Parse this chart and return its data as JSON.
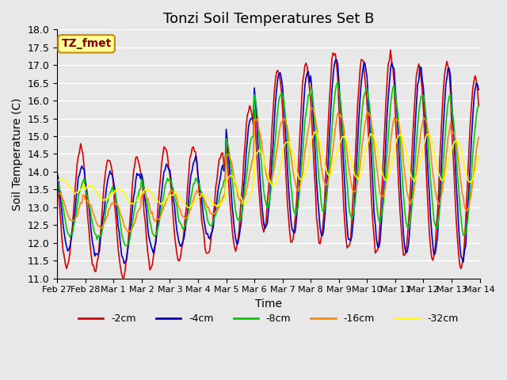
{
  "title": "Tonzi Soil Temperatures Set B",
  "xlabel": "Time",
  "ylabel": "Soil Temperature (C)",
  "ylim": [
    11.0,
    18.0
  ],
  "yticks": [
    11.0,
    11.5,
    12.0,
    12.5,
    13.0,
    13.5,
    14.0,
    14.5,
    15.0,
    15.5,
    16.0,
    16.5,
    17.0,
    17.5,
    18.0
  ],
  "xtick_labels": [
    "Feb 27",
    "Feb 28",
    "Mar 1",
    "Mar 2",
    "Mar 3",
    "Mar 4",
    "Mar 5",
    "Mar 6",
    "Mar 7",
    "Mar 8",
    "Mar 9",
    "Mar 10",
    "Mar 11",
    "Mar 12",
    "Mar 13",
    "Mar 14"
  ],
  "xtick_positions": [
    0,
    1,
    2,
    3,
    4,
    5,
    6,
    7,
    8,
    9,
    10,
    11,
    12,
    13,
    14,
    15
  ],
  "series_colors": [
    "#dd0000",
    "#0000cc",
    "#00cc00",
    "#ff8800",
    "#ffff00"
  ],
  "series_labels": [
    "-2cm",
    "-4cm",
    "-8cm",
    "-16cm",
    "-32cm"
  ],
  "background_color": "#e8e8e8",
  "grid_color": "#ffffff",
  "annotation_text": "TZ_fmet",
  "annotation_bg": "#ffff99",
  "annotation_border": "#cc8800",
  "title_fontsize": 13,
  "label_fontsize": 10,
  "tick_fontsize": 9,
  "legend_fontsize": 9,
  "days": 15,
  "amplitude_2cm": [
    1.7,
    1.6,
    1.7,
    1.7,
    1.6,
    1.4,
    2.0,
    2.3,
    2.5,
    2.7,
    2.7,
    2.8,
    2.7,
    2.8,
    2.7
  ],
  "amplitude_4cm": [
    1.2,
    1.2,
    1.3,
    1.2,
    1.2,
    1.0,
    1.8,
    2.2,
    2.3,
    2.5,
    2.5,
    2.6,
    2.6,
    2.6,
    2.5
  ],
  "amplitude_8cm": [
    0.8,
    0.7,
    0.8,
    0.8,
    0.7,
    0.6,
    1.2,
    1.6,
    1.7,
    1.8,
    1.8,
    1.9,
    1.9,
    1.9,
    1.8
  ],
  "amplitude_16cm": [
    0.4,
    0.4,
    0.4,
    0.4,
    0.4,
    0.3,
    0.7,
    0.9,
    1.0,
    1.1,
    1.1,
    1.2,
    1.2,
    1.2,
    1.1
  ],
  "amplitude_32cm": [
    0.2,
    0.2,
    0.2,
    0.2,
    0.2,
    0.15,
    0.4,
    0.5,
    0.55,
    0.6,
    0.6,
    0.65,
    0.65,
    0.65,
    0.6
  ],
  "base_temps": [
    13.0,
    12.8,
    12.7,
    13.0,
    13.1,
    13.1,
    13.8,
    14.6,
    14.5,
    14.7,
    14.5,
    14.5,
    14.3,
    14.3,
    14.0
  ],
  "base_temps_32": [
    13.6,
    13.4,
    13.3,
    13.3,
    13.2,
    13.2,
    13.5,
    14.1,
    14.3,
    14.5,
    14.4,
    14.4,
    14.4,
    14.4,
    14.3
  ]
}
